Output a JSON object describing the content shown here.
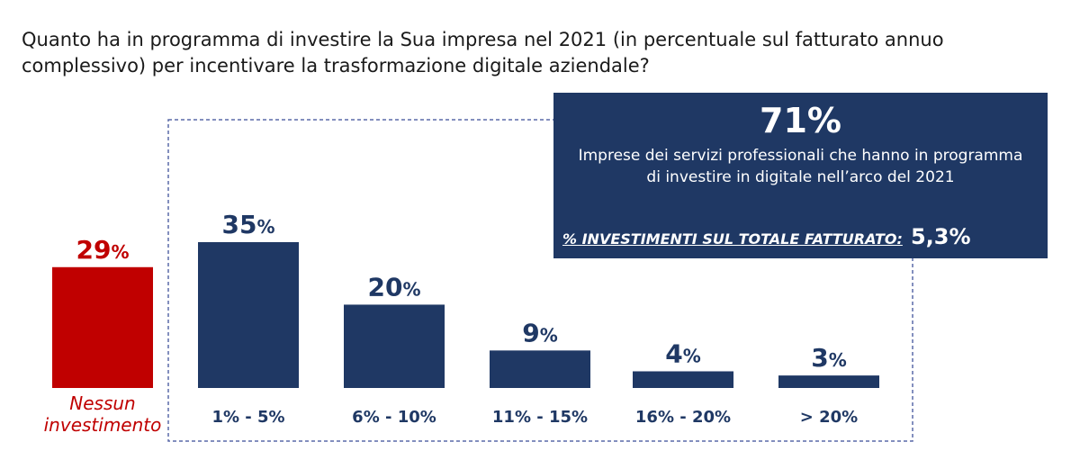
{
  "question": "Quanto ha in programma di investire la Sua impresa nel 2021 (in percentuale sul fatturato annuo complessivo) per incentivare la trasformazione digitale aziendale?",
  "colors": {
    "investment": "#1f3864",
    "none": "#c00000",
    "callout_bg": "#1f3864",
    "dash": "#5a6aa8"
  },
  "chart_data": {
    "type": "bar",
    "title": "",
    "xlabel": "",
    "ylabel": "",
    "unit": "%",
    "ylim": [
      0,
      35
    ],
    "grid": false,
    "categories": [
      "Nessun investimento",
      "1% - 5%",
      "6% - 10%",
      "11% - 15%",
      "16% - 20%",
      "> 20%"
    ],
    "values": [
      29,
      35,
      20,
      9,
      4,
      3
    ],
    "highlight_category": "Nessun investimento"
  },
  "callout": {
    "percent": "71%",
    "description": "Imprese dei servizi professionali che hanno in programma di investire in digitale nell’arco del 2021",
    "kpi_label": "% INVESTIMENTI SUL TOTALE FATTURATO:",
    "kpi_value": "5,3%"
  }
}
